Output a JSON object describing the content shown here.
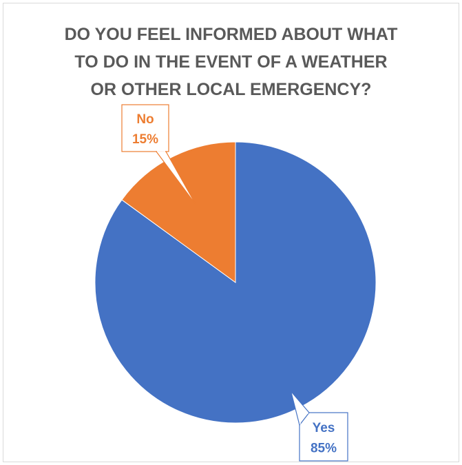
{
  "chart_data": {
    "type": "pie",
    "title_lines": [
      "DO YOU FEEL INFORMED ABOUT WHAT",
      "TO DO IN THE EVENT OF A WEATHER",
      "OR OTHER LOCAL EMERGENCY?"
    ],
    "slices": [
      {
        "name": "Yes",
        "value": 85,
        "percent_label": "85%",
        "color": "#4472C4"
      },
      {
        "name": "No",
        "value": 15,
        "percent_label": "15%",
        "color": "#ED7D31"
      }
    ],
    "legend": "none",
    "data_labels": "callout"
  },
  "colors": {
    "title": "#595959",
    "frame_border": "#d9d9d9",
    "slice_border": "#ffffff"
  }
}
